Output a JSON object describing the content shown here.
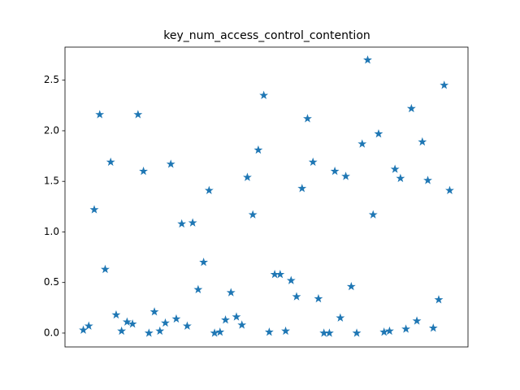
{
  "chart_data": {
    "type": "scatter",
    "title": "key_num_access_control_contention",
    "color": "#1f77b4",
    "marker": "star",
    "values": [
      0.03,
      0.07,
      1.22,
      2.16,
      0.63,
      1.69,
      0.18,
      0.02,
      0.11,
      0.09,
      2.16,
      1.6,
      0.0,
      0.21,
      0.02,
      0.1,
      1.67,
      0.14,
      1.08,
      0.07,
      1.09,
      0.43,
      0.7,
      1.41,
      0.0,
      0.01,
      0.13,
      0.4,
      0.16,
      0.08,
      1.54,
      1.17,
      1.81,
      2.35,
      0.01,
      0.58,
      0.58,
      0.02,
      0.52,
      0.36,
      1.43,
      2.12,
      1.69,
      0.34,
      0.0,
      0.0,
      1.6,
      0.15,
      1.55,
      0.46,
      0.0,
      1.87,
      2.7,
      1.17,
      1.97,
      0.01,
      0.02,
      1.62,
      1.53,
      0.04,
      2.22,
      0.12,
      1.89,
      1.51,
      0.05,
      0.33,
      2.45,
      1.41
    ],
    "xlim": [
      -3.35,
      70.35
    ],
    "ylim": [
      -0.137,
      2.827
    ],
    "yticks": [
      {
        "value": 0,
        "label": "0.0"
      },
      0.5,
      {
        "value": 1,
        "label": "1.0"
      },
      1.5,
      {
        "value": 2,
        "label": "2.0"
      },
      2.5
    ]
  }
}
